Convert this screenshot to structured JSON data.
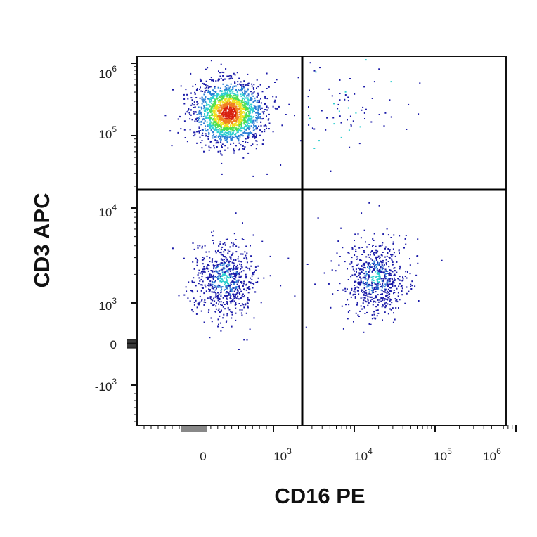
{
  "chart_data": {
    "type": "scatter",
    "title": "",
    "xlabel": "CD16 PE",
    "ylabel": "CD3 APC",
    "scale": "logicle (biexponential)",
    "x_ticks": [
      {
        "base": "0",
        "exp": ""
      },
      {
        "base": "10",
        "exp": "3"
      },
      {
        "base": "10",
        "exp": "4"
      },
      {
        "base": "10",
        "exp": "5"
      },
      {
        "base": "10",
        "exp": "6"
      }
    ],
    "y_ticks": [
      {
        "base": "10",
        "exp": "6"
      },
      {
        "base": "10",
        "exp": "5"
      },
      {
        "base": "10",
        "exp": "4"
      },
      {
        "base": "10",
        "exp": "3"
      },
      {
        "base": "0",
        "exp": ""
      },
      {
        "base": "-10",
        "exp": "3"
      }
    ],
    "quadrant_gates": {
      "x": 2300,
      "y": 16000
    },
    "density_colors": [
      "#1a1aa8",
      "#2b7fd6",
      "#2ecfcf",
      "#4fe04f",
      "#f0e020",
      "#f08020",
      "#d82010"
    ],
    "series": [
      {
        "name": "",
        "population": "upper-left",
        "center_x": 350,
        "center_y": 210000,
        "density": "high"
      },
      {
        "name": "",
        "population": "lower-left",
        "center_x": 300,
        "center_y": 1800,
        "density": "medium"
      },
      {
        "name": "",
        "population": "lower-right",
        "center_x": 18000,
        "center_y": 1900,
        "density": "medium"
      },
      {
        "name": "",
        "population": "upper-right",
        "center_x": 8000,
        "center_y": 250000,
        "density": "sparse"
      }
    ]
  }
}
